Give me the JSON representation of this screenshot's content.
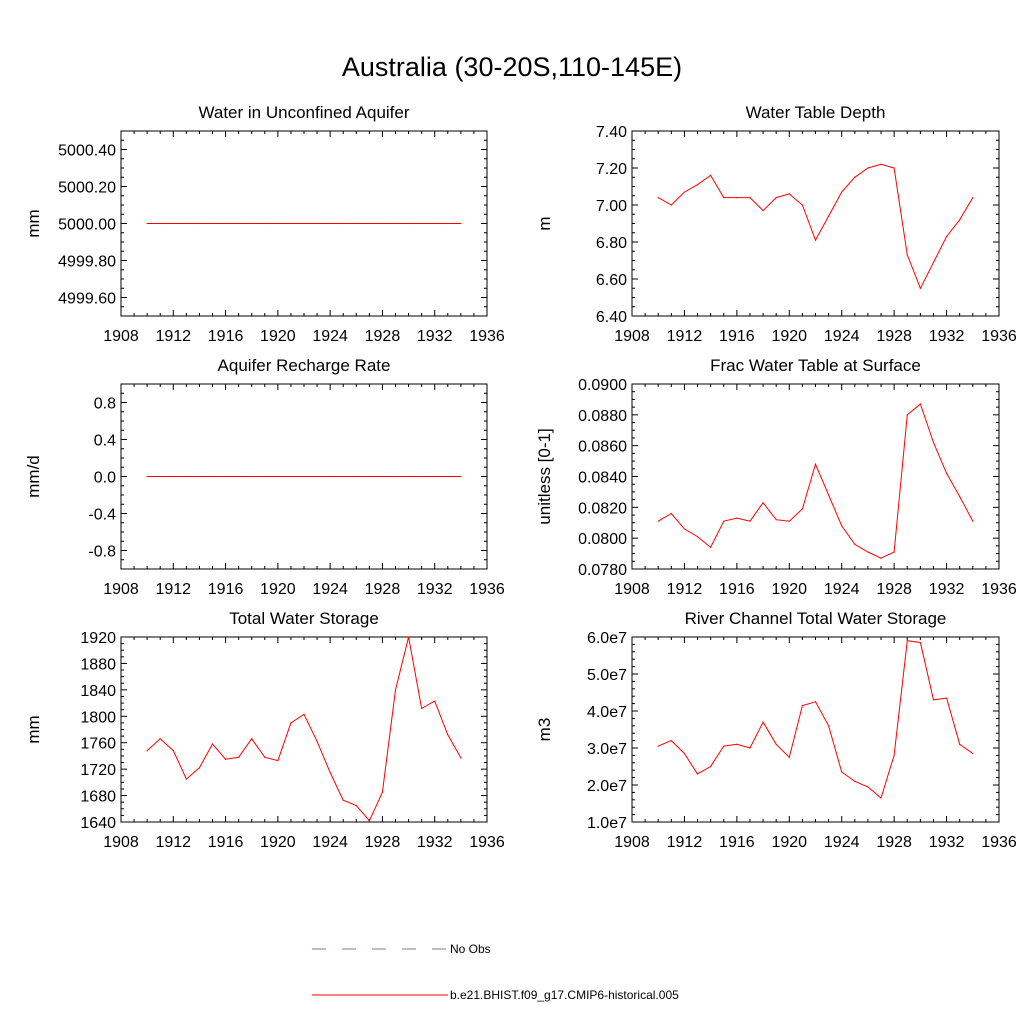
{
  "title": "Australia (30-20S,110-145E)",
  "legend": {
    "no_obs_label": "No Obs",
    "model_label": "b.e21.BHIST.f09_g17.CMIP6-historical.005"
  },
  "colors": {
    "model_line": "#ff0000",
    "obs_line": "#7a7aa8",
    "axes": "#000000"
  },
  "chart_data": [
    {
      "id": "water-unconfined-aquifer",
      "type": "line",
      "title": "Water in Unconfined Aquifer",
      "ylabel": "mm",
      "xlim": [
        1908,
        1936
      ],
      "ylim": [
        4999.5,
        5000.5
      ],
      "xticks": [
        1908,
        1912,
        1916,
        1920,
        1924,
        1928,
        1932,
        1936
      ],
      "yticks": [
        4999.6,
        4999.8,
        5000.0,
        5000.2,
        5000.4
      ],
      "ytick_labels": [
        "4999.60",
        "4999.80",
        "5000.00",
        "5000.20",
        "5000.40"
      ],
      "yminor": [
        4999.5,
        4999.55,
        4999.65,
        4999.7,
        4999.75,
        4999.85,
        4999.9,
        4999.95,
        5000.05,
        5000.1,
        5000.15,
        5000.25,
        5000.3,
        5000.35,
        5000.45,
        5000.5
      ],
      "x": [
        1910,
        1911,
        1912,
        1913,
        1914,
        1915,
        1916,
        1917,
        1918,
        1919,
        1920,
        1921,
        1922,
        1923,
        1924,
        1925,
        1926,
        1927,
        1928,
        1929,
        1930,
        1931,
        1932,
        1933,
        1934
      ],
      "y": [
        5000,
        5000,
        5000,
        5000,
        5000,
        5000,
        5000,
        5000,
        5000,
        5000,
        5000,
        5000,
        5000,
        5000,
        5000,
        5000,
        5000,
        5000,
        5000,
        5000,
        5000,
        5000,
        5000,
        5000,
        5000
      ]
    },
    {
      "id": "water-table-depth",
      "type": "line",
      "title": "Water Table Depth",
      "ylabel": "m",
      "xlim": [
        1908,
        1936
      ],
      "ylim": [
        6.4,
        7.4
      ],
      "xticks": [
        1908,
        1912,
        1916,
        1920,
        1924,
        1928,
        1932,
        1936
      ],
      "yticks": [
        6.4,
        6.6,
        6.8,
        7.0,
        7.2,
        7.4
      ],
      "ytick_labels": [
        "6.40",
        "6.60",
        "6.80",
        "7.00",
        "7.20",
        "7.40"
      ],
      "yminor": [
        6.45,
        6.5,
        6.55,
        6.65,
        6.7,
        6.75,
        6.85,
        6.9,
        6.95,
        7.05,
        7.1,
        7.15,
        7.25,
        7.3,
        7.35
      ],
      "x": [
        1910,
        1911,
        1912,
        1913,
        1914,
        1915,
        1916,
        1917,
        1918,
        1919,
        1920,
        1921,
        1922,
        1923,
        1924,
        1925,
        1926,
        1927,
        1928,
        1929,
        1930,
        1931,
        1932,
        1933,
        1934
      ],
      "y": [
        7.04,
        7.0,
        7.07,
        7.11,
        7.16,
        7.04,
        7.04,
        7.04,
        6.97,
        7.04,
        7.06,
        7.0,
        6.81,
        6.94,
        7.07,
        7.15,
        7.2,
        7.22,
        7.2,
        6.73,
        6.55,
        6.69,
        6.83,
        6.92,
        7.04
      ]
    },
    {
      "id": "aquifer-recharge-rate",
      "type": "line",
      "title": "Aquifer Recharge Rate",
      "ylabel": "mm/d",
      "xlim": [
        1908,
        1936
      ],
      "ylim": [
        -1.0,
        1.0
      ],
      "xticks": [
        1908,
        1912,
        1916,
        1920,
        1924,
        1928,
        1932,
        1936
      ],
      "yticks": [
        -0.8,
        -0.4,
        0.0,
        0.4,
        0.8
      ],
      "ytick_labels": [
        "-0.8",
        "-0.4",
        "0.0",
        "0.4",
        "0.8"
      ],
      "yminor": [
        -1.0,
        -0.9,
        -0.7,
        -0.6,
        -0.5,
        -0.3,
        -0.2,
        -0.1,
        0.1,
        0.2,
        0.3,
        0.5,
        0.6,
        0.7,
        0.9,
        1.0
      ],
      "x": [
        1910,
        1911,
        1912,
        1913,
        1914,
        1915,
        1916,
        1917,
        1918,
        1919,
        1920,
        1921,
        1922,
        1923,
        1924,
        1925,
        1926,
        1927,
        1928,
        1929,
        1930,
        1931,
        1932,
        1933,
        1934
      ],
      "y": [
        0,
        0,
        0,
        0,
        0,
        0,
        0,
        0,
        0,
        0,
        0,
        0,
        0,
        0,
        0,
        0,
        0,
        0,
        0,
        0,
        0,
        0,
        0,
        0,
        0
      ]
    },
    {
      "id": "frac-water-table-surface",
      "type": "line",
      "title": "Frac Water Table at Surface",
      "ylabel": "unitless [0-1]",
      "xlim": [
        1908,
        1936
      ],
      "ylim": [
        0.078,
        0.09
      ],
      "xticks": [
        1908,
        1912,
        1916,
        1920,
        1924,
        1928,
        1932,
        1936
      ],
      "yticks": [
        0.078,
        0.08,
        0.082,
        0.084,
        0.086,
        0.088,
        0.09
      ],
      "ytick_labels": [
        "0.0780",
        "0.0800",
        "0.0820",
        "0.0840",
        "0.0860",
        "0.0880",
        "0.0900"
      ],
      "yminor": [
        0.0785,
        0.079,
        0.0795,
        0.0805,
        0.081,
        0.0815,
        0.0825,
        0.083,
        0.0835,
        0.0845,
        0.085,
        0.0855,
        0.0865,
        0.087,
        0.0875,
        0.0885,
        0.089,
        0.0895
      ],
      "x": [
        1910,
        1911,
        1912,
        1913,
        1914,
        1915,
        1916,
        1917,
        1918,
        1919,
        1920,
        1921,
        1922,
        1923,
        1924,
        1925,
        1926,
        1927,
        1928,
        1929,
        1930,
        1931,
        1932,
        1933,
        1934
      ],
      "y": [
        0.0811,
        0.0816,
        0.0806,
        0.0801,
        0.0794,
        0.0811,
        0.0813,
        0.0811,
        0.0823,
        0.0812,
        0.0811,
        0.0819,
        0.0848,
        0.0828,
        0.0808,
        0.0796,
        0.0791,
        0.0787,
        0.0791,
        0.088,
        0.0887,
        0.0862,
        0.0842,
        0.0827,
        0.0811
      ]
    },
    {
      "id": "total-water-storage",
      "type": "line",
      "title": "Total Water Storage",
      "ylabel": "mm",
      "xlim": [
        1908,
        1936
      ],
      "ylim": [
        1640,
        1920
      ],
      "xticks": [
        1908,
        1912,
        1916,
        1920,
        1924,
        1928,
        1932,
        1936
      ],
      "yticks": [
        1640,
        1680,
        1720,
        1760,
        1800,
        1840,
        1880,
        1920
      ],
      "ytick_labels": [
        "1640",
        "1680",
        "1720",
        "1760",
        "1800",
        "1840",
        "1880",
        "1920"
      ],
      "yminor": [
        1650,
        1660,
        1670,
        1690,
        1700,
        1710,
        1730,
        1740,
        1750,
        1770,
        1780,
        1790,
        1810,
        1820,
        1830,
        1850,
        1860,
        1870,
        1890,
        1900,
        1910
      ],
      "x": [
        1910,
        1911,
        1912,
        1913,
        1914,
        1915,
        1916,
        1917,
        1918,
        1919,
        1920,
        1921,
        1922,
        1923,
        1924,
        1925,
        1926,
        1927,
        1928,
        1929,
        1930,
        1931,
        1932,
        1933,
        1934
      ],
      "y": [
        1748,
        1766,
        1748,
        1705,
        1722,
        1758,
        1735,
        1738,
        1766,
        1738,
        1733,
        1790,
        1803,
        1762,
        1715,
        1673,
        1665,
        1642,
        1685,
        1840,
        1920,
        1812,
        1823,
        1772,
        1737
      ]
    },
    {
      "id": "river-channel-storage",
      "type": "line",
      "title": "River Channel Total Water Storage",
      "ylabel": "m3",
      "xlim": [
        1908,
        1936
      ],
      "ylim": [
        10000000,
        60000000
      ],
      "xticks": [
        1908,
        1912,
        1916,
        1920,
        1924,
        1928,
        1932,
        1936
      ],
      "yticks": [
        10000000,
        20000000,
        30000000,
        40000000,
        50000000,
        60000000
      ],
      "ytick_labels": [
        "1.0e7",
        "2.0e7",
        "3.0e7",
        "4.0e7",
        "5.0e7",
        "6.0e7"
      ],
      "yminor": [
        12000000,
        14000000,
        16000000,
        18000000,
        22000000,
        24000000,
        26000000,
        28000000,
        32000000,
        34000000,
        36000000,
        38000000,
        42000000,
        44000000,
        46000000,
        48000000,
        52000000,
        54000000,
        56000000,
        58000000
      ],
      "x": [
        1910,
        1911,
        1912,
        1913,
        1914,
        1915,
        1916,
        1917,
        1918,
        1919,
        1920,
        1921,
        1922,
        1923,
        1924,
        1925,
        1926,
        1927,
        1928,
        1929,
        1930,
        1931,
        1932,
        1933,
        1934
      ],
      "y": [
        30500000,
        32000000,
        28500000,
        23000000,
        25000000,
        30500000,
        31000000,
        30000000,
        37000000,
        31000000,
        27500000,
        41500000,
        42500000,
        36000000,
        23500000,
        21000000,
        19500000,
        16500000,
        28000000,
        59000000,
        58500000,
        43000000,
        43500000,
        31000000,
        28500000
      ]
    }
  ]
}
